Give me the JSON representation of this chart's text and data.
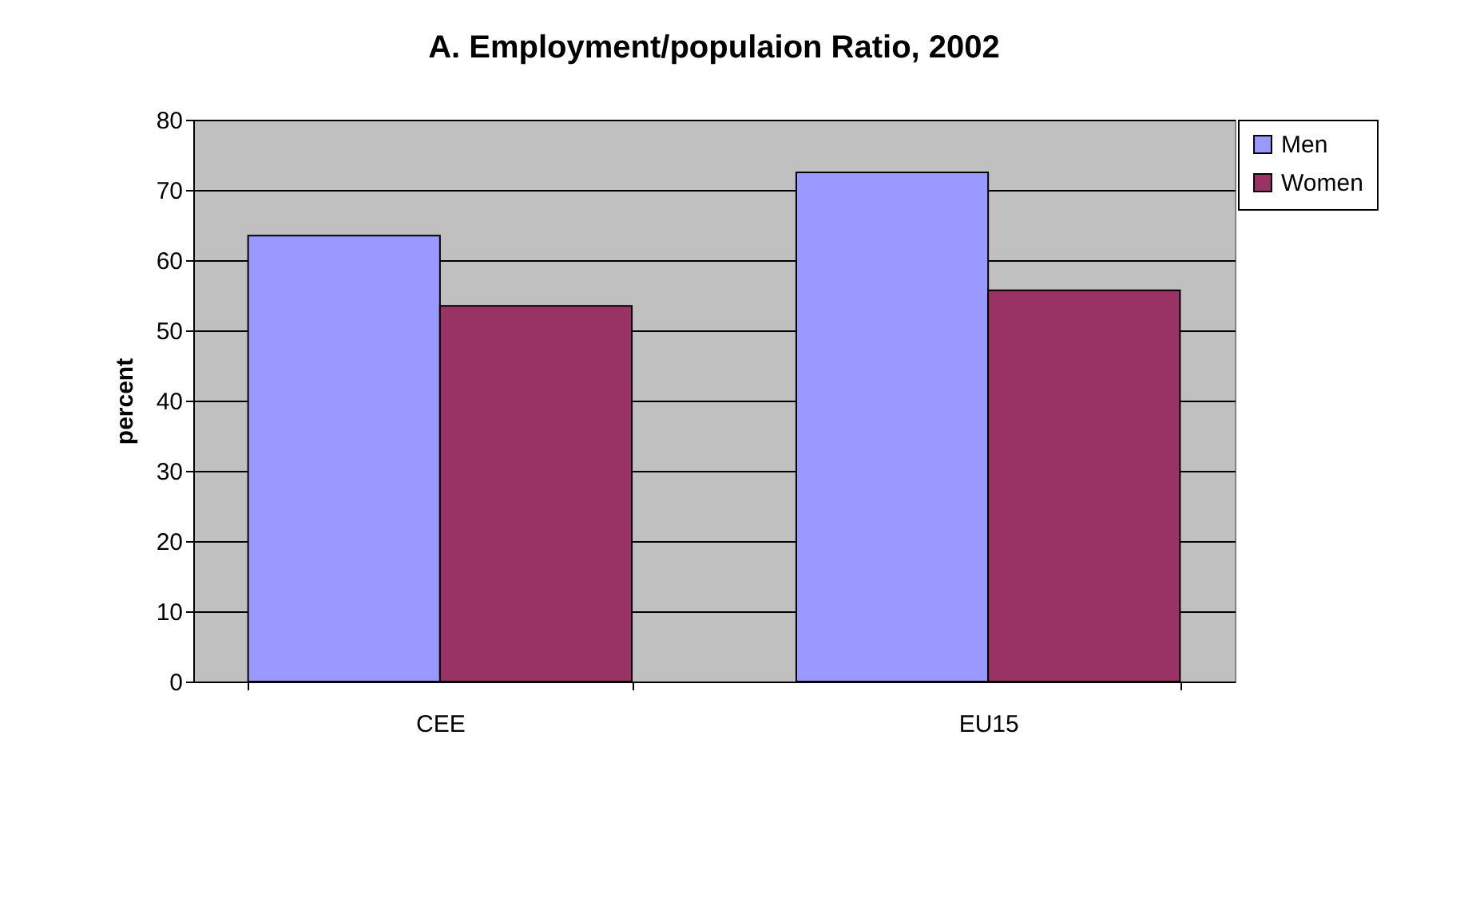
{
  "chart_data": {
    "type": "bar",
    "title": "A.  Employment/populaion Ratio, 2002",
    "ylabel": "percent",
    "categories": [
      "CEE",
      "EU15"
    ],
    "series": [
      {
        "name": "Men",
        "color": "#9999ff",
        "values": [
          63.5,
          72.5
        ]
      },
      {
        "name": "Women",
        "color": "#993366",
        "values": [
          53.5,
          55.7
        ]
      }
    ],
    "ylim": [
      0,
      80
    ],
    "yticks": [
      0,
      10,
      20,
      30,
      40,
      50,
      60,
      70,
      80
    ],
    "grid": "y",
    "legend": "right"
  }
}
